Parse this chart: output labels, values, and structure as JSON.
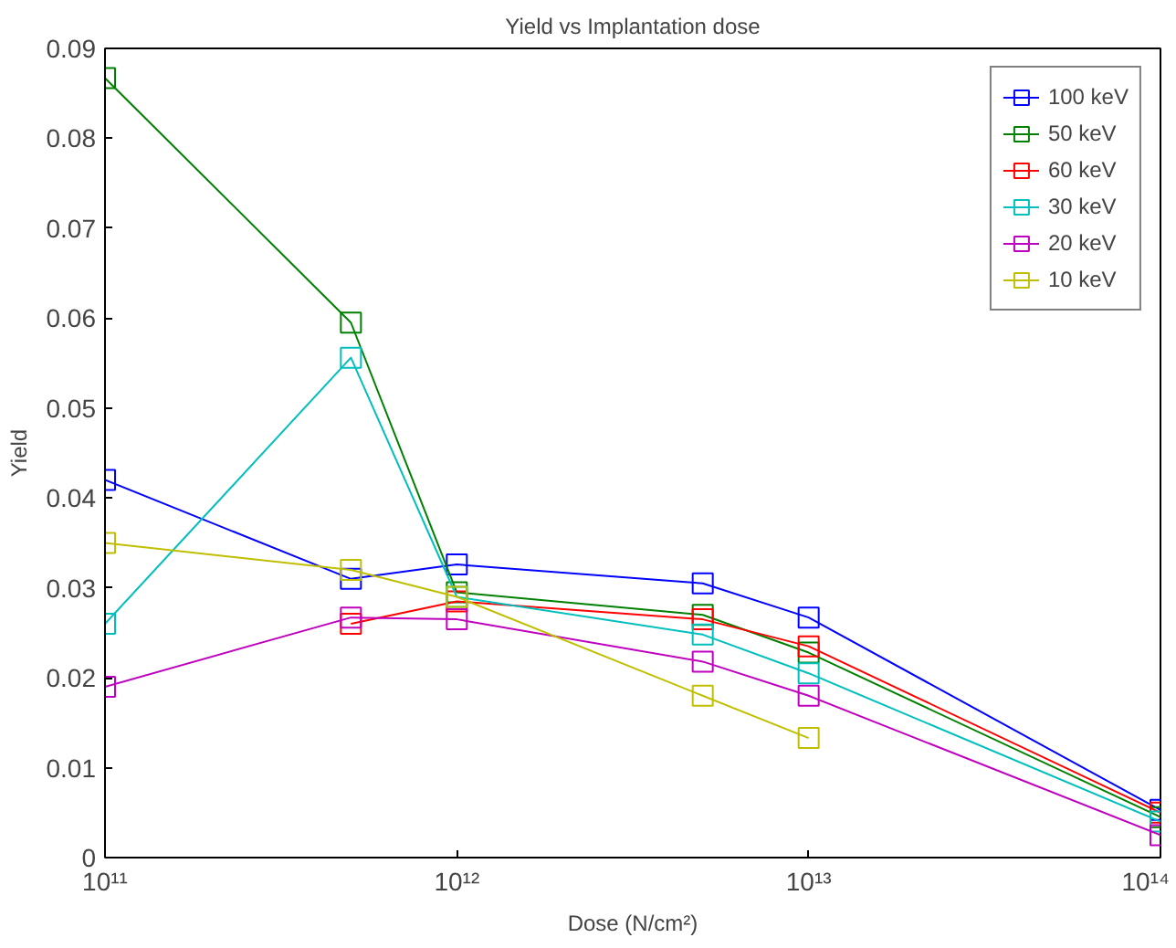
{
  "chart_data": {
    "type": "line",
    "title": "Yield vs Implantation dose",
    "xlabel": "Dose (N/cm²)",
    "ylabel": "Yield",
    "x": [
      100000000000.0,
      500000000000.0,
      1000000000000.0,
      5000000000000.0,
      10000000000000.0,
      100000000000000.0
    ],
    "log": "x",
    "marker": "square",
    "grid": false,
    "legend": "top right",
    "xlim": [
      100000000000.0,
      100000000000000.0
    ],
    "xticks": [
      {
        "value": 100000000000.0,
        "label": "10¹¹"
      },
      {
        "value": 1000000000000.0,
        "label": "10¹²"
      },
      {
        "value": 10000000000000.0,
        "label": "10¹³"
      },
      {
        "value": 100000000000000.0,
        "label": "10¹⁴"
      }
    ],
    "ylim": [
      0,
      0.09
    ],
    "yticks": [
      0,
      0.01,
      0.02,
      0.03,
      0.04,
      0.05,
      0.06,
      0.07,
      0.08,
      0.09
    ],
    "series": [
      {
        "name": "100 keV",
        "color": "#0000ff",
        "values": [
          0.042,
          0.031,
          0.0326,
          0.0305,
          0.0267,
          0.0053
        ]
      },
      {
        "name": "50 keV",
        "color": "#008000",
        "values": [
          0.0867,
          0.0595,
          0.0295,
          0.027,
          0.0228,
          0.0045
        ]
      },
      {
        "name": "60 keV",
        "color": "#ff0000",
        "x": [
          500000000000.0,
          1000000000000.0,
          5000000000000.0,
          10000000000000.0,
          100000000000000.0
        ],
        "values": [
          0.026,
          0.0285,
          0.0265,
          0.0235,
          0.005
        ]
      },
      {
        "name": "30 keV",
        "color": "#00bfbf",
        "values": [
          0.026,
          0.0556,
          0.029,
          0.0248,
          0.0205,
          0.004
        ]
      },
      {
        "name": "20 keV",
        "color": "#bf00bf",
        "values": [
          0.019,
          0.0267,
          0.0265,
          0.0218,
          0.018,
          0.0025
        ]
      },
      {
        "name": "10 keV",
        "color": "#bfbf00",
        "x": [
          100000000000.0,
          500000000000.0,
          1000000000000.0,
          5000000000000.0,
          10000000000000.0
        ],
        "values": [
          0.035,
          0.032,
          0.029,
          0.018,
          0.0133
        ]
      }
    ]
  }
}
